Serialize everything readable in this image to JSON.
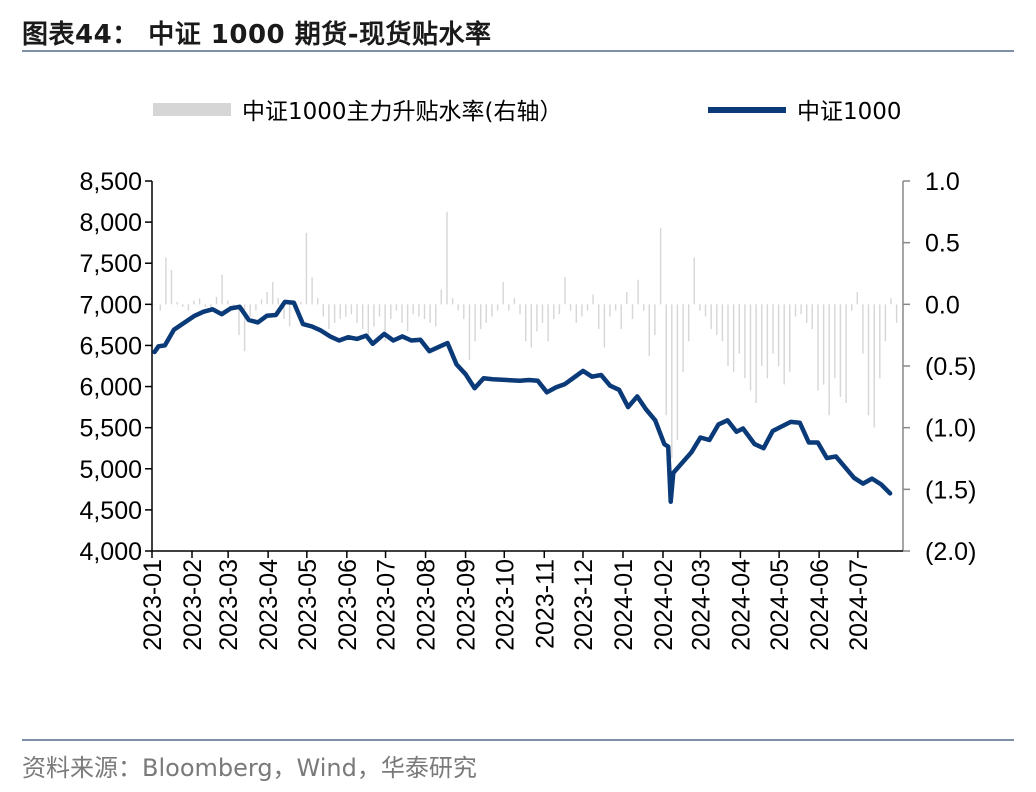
{
  "figure": {
    "title": "图表44： 中证 1000 期货-现货贴水率",
    "source": "资料来源：Bloomberg，Wind，华泰研究"
  },
  "colors": {
    "line": "#0a3a78",
    "bars": "#d6d6d6",
    "axis": "#000000",
    "rule": "#7f8fa6"
  },
  "chart_data": {
    "type": "line",
    "legend_placement": "top",
    "grid": false,
    "series": [
      {
        "name": "中证1000主力升贴水率(右轴）",
        "kind": "bar",
        "axis": "right",
        "x_range": [
          "2023-01-03",
          "2024-07-31"
        ],
        "values": [
          0.0,
          -0.05,
          0.38,
          0.28,
          0.02,
          -0.02,
          -0.05,
          0.03,
          0.05,
          -0.02,
          -0.05,
          0.06,
          0.24,
          0.03,
          -0.02,
          -0.25,
          -0.38,
          -0.1,
          -0.05,
          0.04,
          0.1,
          0.18,
          0.05,
          -0.12,
          -0.18,
          -0.05,
          0.02,
          0.58,
          0.22,
          0.05,
          -0.1,
          -0.2,
          -0.15,
          -0.12,
          -0.1,
          -0.08,
          -0.15,
          -0.2,
          -0.25,
          -0.18,
          -0.1,
          -0.3,
          -0.12,
          -0.05,
          -0.15,
          -0.22,
          -0.08,
          -0.1,
          -0.12,
          -0.15,
          -0.18,
          0.12,
          0.75,
          0.05,
          -0.05,
          -0.12,
          -0.45,
          -0.3,
          -0.2,
          -0.15,
          -0.1,
          -0.05,
          0.18,
          -0.05,
          0.05,
          -0.08,
          -0.3,
          -0.35,
          -0.22,
          -0.15,
          -0.3,
          -0.12,
          -0.08,
          0.22,
          -0.05,
          -0.15,
          -0.1,
          -0.05,
          0.08,
          -0.2,
          -0.35,
          -0.1,
          -0.05,
          -0.2,
          0.1,
          -0.12,
          0.2,
          -0.05,
          -0.42,
          -0.25,
          0.62,
          -0.9,
          -1.25,
          -1.1,
          -0.55,
          -0.3,
          0.38,
          -0.05,
          -0.1,
          -0.2,
          -0.25,
          -0.3,
          -0.5,
          -0.55,
          -0.4,
          -0.6,
          -0.7,
          -0.8,
          -0.5,
          -0.6,
          -0.4,
          -0.5,
          -0.65,
          -0.55,
          -0.1,
          -0.08,
          -0.15,
          -0.2,
          -0.7,
          -0.65,
          -0.9,
          -0.6,
          -0.75,
          -0.8,
          -0.05,
          0.1,
          -0.4,
          -0.9,
          -1.0,
          -0.6,
          -0.3,
          0.05,
          -0.15
        ]
      },
      {
        "name": "中证1000",
        "kind": "line",
        "axis": "left",
        "points": [
          [
            "2023-01-03",
            6420
          ],
          [
            "2023-01-06",
            6490
          ],
          [
            "2023-01-11",
            6500
          ],
          [
            "2023-01-18",
            6690
          ],
          [
            "2023-02-03",
            6860
          ],
          [
            "2023-02-10",
            6910
          ],
          [
            "2023-02-17",
            6940
          ],
          [
            "2023-02-24",
            6880
          ],
          [
            "2023-03-03",
            6950
          ],
          [
            "2023-03-10",
            6970
          ],
          [
            "2023-03-17",
            6810
          ],
          [
            "2023-03-24",
            6780
          ],
          [
            "2023-03-31",
            6860
          ],
          [
            "2023-04-07",
            6870
          ],
          [
            "2023-04-14",
            7030
          ],
          [
            "2023-04-21",
            7020
          ],
          [
            "2023-04-28",
            6760
          ],
          [
            "2023-05-05",
            6730
          ],
          [
            "2023-05-12",
            6680
          ],
          [
            "2023-05-19",
            6610
          ],
          [
            "2023-05-26",
            6560
          ],
          [
            "2023-06-02",
            6600
          ],
          [
            "2023-06-09",
            6580
          ],
          [
            "2023-06-16",
            6620
          ],
          [
            "2023-06-21",
            6520
          ],
          [
            "2023-06-30",
            6640
          ],
          [
            "2023-07-07",
            6560
          ],
          [
            "2023-07-14",
            6610
          ],
          [
            "2023-07-21",
            6560
          ],
          [
            "2023-07-28",
            6570
          ],
          [
            "2023-08-04",
            6430
          ],
          [
            "2023-08-11",
            6480
          ],
          [
            "2023-08-18",
            6530
          ],
          [
            "2023-08-25",
            6270
          ],
          [
            "2023-09-01",
            6150
          ],
          [
            "2023-09-08",
            5980
          ],
          [
            "2023-09-15",
            6100
          ],
          [
            "2023-09-22",
            6090
          ],
          [
            "2023-10-13",
            6070
          ],
          [
            "2023-10-20",
            6080
          ],
          [
            "2023-10-27",
            6070
          ],
          [
            "2023-11-03",
            5930
          ],
          [
            "2023-11-10",
            5990
          ],
          [
            "2023-11-17",
            6030
          ],
          [
            "2023-11-24",
            6110
          ],
          [
            "2023-12-01",
            6190
          ],
          [
            "2023-12-08",
            6120
          ],
          [
            "2023-12-15",
            6140
          ],
          [
            "2023-12-22",
            6010
          ],
          [
            "2023-12-29",
            5960
          ],
          [
            "2024-01-05",
            5750
          ],
          [
            "2024-01-12",
            5880
          ],
          [
            "2024-01-19",
            5720
          ],
          [
            "2024-01-26",
            5590
          ],
          [
            "2024-02-02",
            5300
          ],
          [
            "2024-02-05",
            5270
          ],
          [
            "2024-02-07",
            4600
          ],
          [
            "2024-02-09",
            4950
          ],
          [
            "2024-02-23",
            5200
          ],
          [
            "2024-03-01",
            5380
          ],
          [
            "2024-03-08",
            5350
          ],
          [
            "2024-03-15",
            5540
          ],
          [
            "2024-03-22",
            5590
          ],
          [
            "2024-03-29",
            5450
          ],
          [
            "2024-04-03",
            5490
          ],
          [
            "2024-04-12",
            5300
          ],
          [
            "2024-04-19",
            5250
          ],
          [
            "2024-04-26",
            5460
          ],
          [
            "2024-05-10",
            5570
          ],
          [
            "2024-05-17",
            5560
          ],
          [
            "2024-05-24",
            5320
          ],
          [
            "2024-05-31",
            5320
          ],
          [
            "2024-06-07",
            5130
          ],
          [
            "2024-06-14",
            5150
          ],
          [
            "2024-06-21",
            5020
          ],
          [
            "2024-06-28",
            4890
          ],
          [
            "2024-07-05",
            4820
          ],
          [
            "2024-07-12",
            4880
          ],
          [
            "2024-07-19",
            4810
          ],
          [
            "2024-07-26",
            4700
          ]
        ]
      }
    ],
    "x_ticks": [
      "2023-01",
      "2023-02",
      "2023-03",
      "2023-04",
      "2023-05",
      "2023-06",
      "2023-07",
      "2023-08",
      "2023-09",
      "2023-10",
      "2023-11",
      "2023-12",
      "2024-01",
      "2024-02",
      "2024-03",
      "2024-04",
      "2024-05",
      "2024-06",
      "2024-07"
    ],
    "y_left": {
      "min": 4000,
      "max": 8500,
      "ticks": [
        "4,000",
        "4,500",
        "5,000",
        "5,500",
        "6,000",
        "6,500",
        "7,000",
        "7,500",
        "8,000",
        "8,500"
      ]
    },
    "y_right": {
      "min": -2.0,
      "max": 1.0,
      "ticks": [
        "(2.0)",
        "(1.5)",
        "(1.0)",
        "(0.5)",
        "0.0",
        "0.5",
        "1.0"
      ]
    }
  }
}
